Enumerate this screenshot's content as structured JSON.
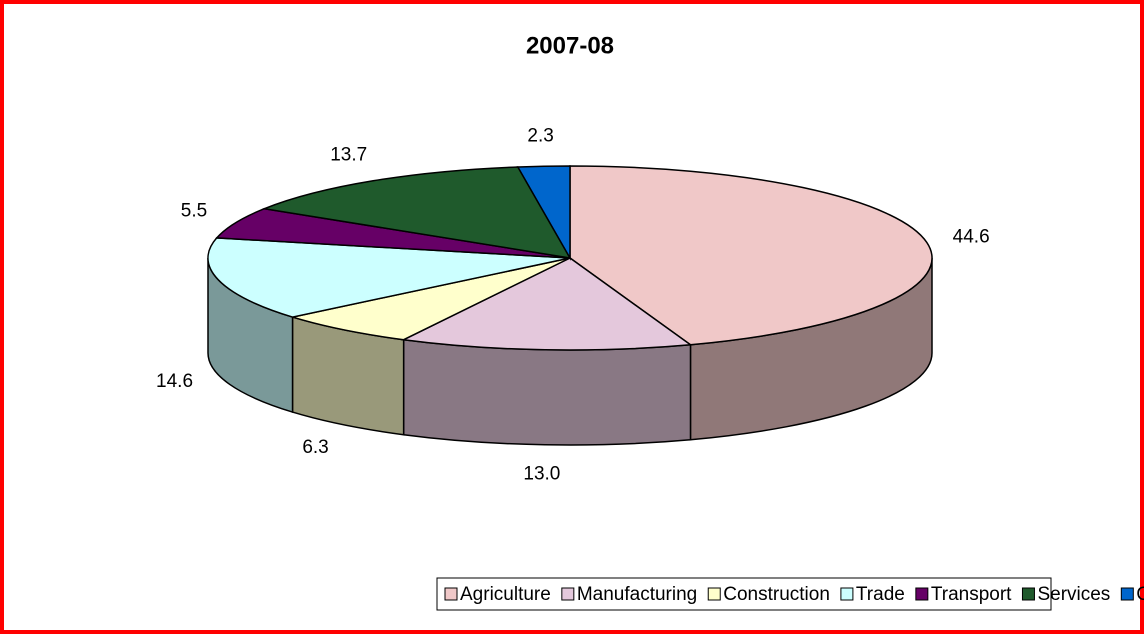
{
  "chart_data": {
    "type": "pie3d",
    "title": "2007-08",
    "categories": [
      "Agriculture",
      "Manufacturing",
      "Construction",
      "Trade",
      "Transport",
      "Services",
      "Others"
    ],
    "values": [
      44.6,
      13.0,
      6.3,
      14.6,
      5.5,
      13.7,
      2.3
    ],
    "value_labels": [
      "44.6",
      "13.0",
      "6.3",
      "14.6",
      "5.5",
      "13.7",
      "2.3"
    ],
    "colors": [
      "#f0c8c8",
      "#e4c8dc",
      "#ffffcc",
      "#ccffff",
      "#660066",
      "#1f5a2c",
      "#0066cc"
    ],
    "legend": "bottom"
  }
}
